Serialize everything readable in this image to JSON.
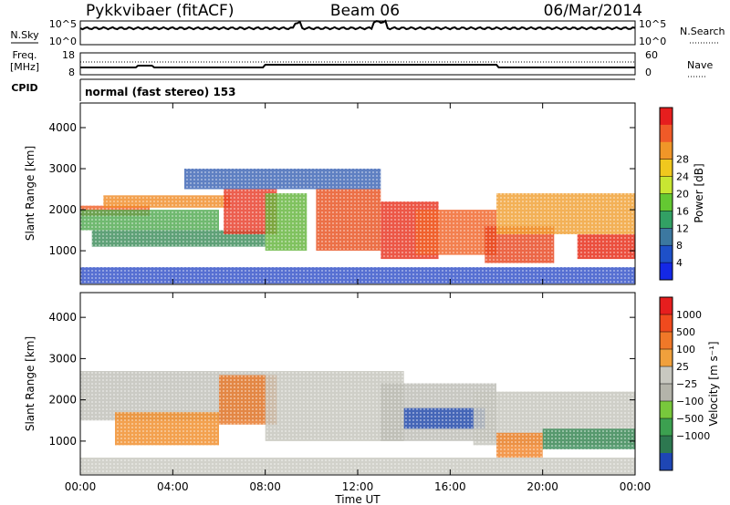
{
  "header": {
    "station": "Pykkvibaer (fitACF)",
    "beam": "Beam 06",
    "date": "06/Mar/2014"
  },
  "top_panels": {
    "nsky_label": "N.Sky",
    "nsearch_label": "N.Search",
    "nsky_ticks": [
      "10^5",
      "10^0"
    ],
    "nsearch_ticks": [
      "10^5",
      "10^0"
    ],
    "freq_label": "Freq.",
    "freq_unit": "[MHz]",
    "freq_ticks": [
      "18",
      "8"
    ],
    "nave_label": "Nave",
    "nave_ticks": [
      "60",
      "0"
    ],
    "cpid_label": "CPID",
    "cpid_text": "normal (fast stereo) 153"
  },
  "time_axis": {
    "label": "Time UT",
    "ticks": [
      "00:00",
      "04:00",
      "08:00",
      "12:00",
      "16:00",
      "20:00",
      "00:00"
    ]
  },
  "chart_data": [
    {
      "type": "heatmap",
      "name": "power-panel",
      "ylabel": "Slant Range [km]",
      "x_range_hours": [
        0,
        24
      ],
      "ylim": [
        180,
        4600
      ],
      "yticks": [
        "1000",
        "2000",
        "3000",
        "4000"
      ],
      "colorbar_label": "Power [dB]",
      "colorbar_ticks": [
        "4",
        "8",
        "12",
        "16",
        "20",
        "24",
        "28"
      ],
      "colorbar_colors": [
        "#1428e6",
        "#1e50c8",
        "#3c78a0",
        "#32a064",
        "#64c832",
        "#c8e632",
        "#f0c81e",
        "#f09628",
        "#f05a28",
        "#e61e1e"
      ],
      "bands": [
        {
          "t0": 0.0,
          "t1": 3.0,
          "r0": 1850,
          "r1": 2100,
          "c": "#f06028"
        },
        {
          "t0": 1.0,
          "t1": 6.5,
          "r0": 2050,
          "r1": 2350,
          "c": "#f08c28"
        },
        {
          "t0": 0.0,
          "t1": 6.0,
          "r0": 1500,
          "r1": 2000,
          "c": "#50aa50"
        },
        {
          "t0": 0.5,
          "t1": 8.0,
          "r0": 1100,
          "r1": 1500,
          "c": "#3c8c5a"
        },
        {
          "t0": 6.2,
          "t1": 8.5,
          "r0": 1400,
          "r1": 2500,
          "c": "#e83c28"
        },
        {
          "t0": 8.0,
          "t1": 9.8,
          "r0": 1000,
          "r1": 2400,
          "c": "#64b43c"
        },
        {
          "t0": 10.2,
          "t1": 13.0,
          "r0": 1000,
          "r1": 2500,
          "c": "#e8501e"
        },
        {
          "t0": 13.0,
          "t1": 15.5,
          "r0": 800,
          "r1": 2200,
          "c": "#e8321e"
        },
        {
          "t0": 14.5,
          "t1": 18.0,
          "r0": 900,
          "r1": 2000,
          "c": "#f06428"
        },
        {
          "t0": 17.5,
          "t1": 20.5,
          "r0": 700,
          "r1": 1600,
          "c": "#e8461e"
        },
        {
          "t0": 18.0,
          "t1": 24.0,
          "r0": 1400,
          "r1": 2400,
          "c": "#f0a032"
        },
        {
          "t0": 21.5,
          "t1": 24.0,
          "r0": 800,
          "r1": 1400,
          "c": "#e62814"
        },
        {
          "t0": 4.5,
          "t1": 13.0,
          "r0": 2500,
          "r1": 3000,
          "c": "#3c64b4"
        },
        {
          "t0": 0.0,
          "t1": 24.0,
          "r0": 200,
          "r1": 600,
          "c": "#3250c8"
        }
      ]
    },
    {
      "type": "heatmap",
      "name": "velocity-panel",
      "ylabel": "Slant Range [km]",
      "x_range_hours": [
        0,
        24
      ],
      "ylim": [
        180,
        4600
      ],
      "yticks": [
        "1000",
        "2000",
        "3000",
        "4000"
      ],
      "colorbar_label": "Velocity [m s⁻¹]",
      "colorbar_ticks": [
        "1000",
        "500",
        "100",
        "25",
        "−25",
        "−100",
        "−500",
        "−1000"
      ],
      "colorbar_colors": [
        "#1e46b4",
        "#2d7850",
        "#3ca050",
        "#78c83c",
        "#b4b4aa",
        "#c8c8c0",
        "#f0a03c",
        "#f07828",
        "#f04a1e",
        "#e61e1e"
      ],
      "bands": [
        {
          "t0": 0.0,
          "t1": 8.0,
          "r0": 1500,
          "r1": 2700,
          "c": "#c0c0b8"
        },
        {
          "t0": 1.5,
          "t1": 6.0,
          "r0": 900,
          "r1": 1700,
          "c": "#f08c28"
        },
        {
          "t0": 6.0,
          "t1": 8.5,
          "r0": 1400,
          "r1": 2600,
          "c": "#e87828"
        },
        {
          "t0": 8.0,
          "t1": 14.0,
          "r0": 1000,
          "r1": 2700,
          "c": "#c4c4bc"
        },
        {
          "t0": 13.0,
          "t1": 18.0,
          "r0": 1000,
          "r1": 2400,
          "c": "#bcbcb4"
        },
        {
          "t0": 14.0,
          "t1": 17.5,
          "r0": 1300,
          "r1": 1800,
          "c": "#2850b4"
        },
        {
          "t0": 17.0,
          "t1": 24.0,
          "r0": 900,
          "r1": 2200,
          "c": "#c4c4bc"
        },
        {
          "t0": 20.0,
          "t1": 24.0,
          "r0": 800,
          "r1": 1300,
          "c": "#3c8c5a"
        },
        {
          "t0": 18.0,
          "t1": 20.0,
          "r0": 600,
          "r1": 1200,
          "c": "#f08228"
        },
        {
          "t0": 0.0,
          "t1": 24.0,
          "r0": 200,
          "r1": 600,
          "c": "#c8c8c0"
        }
      ]
    }
  ]
}
